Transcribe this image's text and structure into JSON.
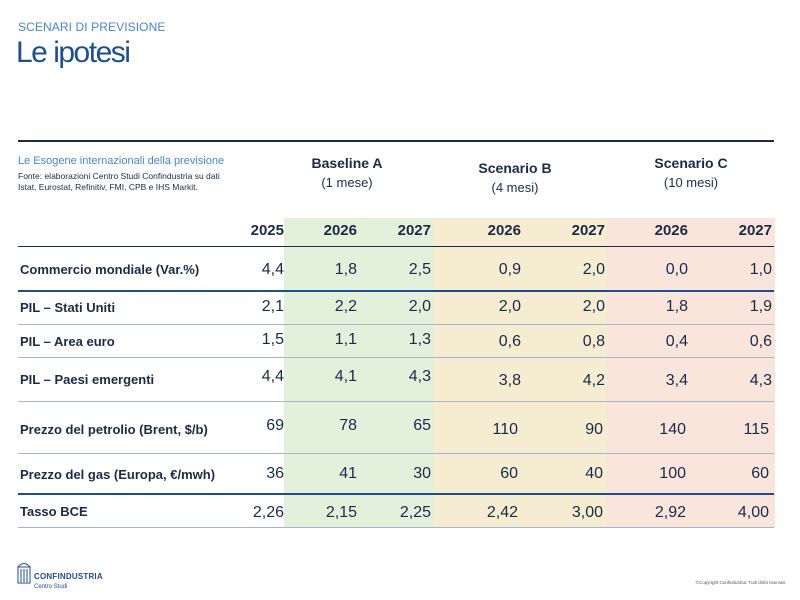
{
  "header": {
    "section": "SCENARI DI PREVISIONE",
    "title": "Le ipotesi"
  },
  "table": {
    "title": "Le Esogene internazionali della previsione",
    "source": "Fonte: elaborazioni Centro Studi Confindustria su dati Istat, Eurostat, Refinitiv, FMI, CPB e IHS Markit.",
    "scenarios": [
      {
        "name": "Baseline A",
        "sub": "(1 mese)"
      },
      {
        "name": "Scenario B",
        "sub": "(4 mesi)"
      },
      {
        "name": "Scenario C",
        "sub": "(10 mesi)"
      }
    ],
    "years": [
      "2025",
      "2026",
      "2027",
      "2026",
      "2027",
      "2026",
      "2027"
    ],
    "rows": [
      {
        "label": "Commercio mondiale (Var.%)",
        "values": [
          "4,4",
          "1,8",
          "2,5",
          "0,9",
          "2,0",
          "0,0",
          "1,0"
        ]
      },
      {
        "label": "PIL – Stati Uniti",
        "values": [
          "2,1",
          "2,2",
          "2,0",
          "2,0",
          "2,0",
          "1,8",
          "1,9"
        ]
      },
      {
        "label": "PIL – Area euro",
        "values": [
          "1,5",
          "1,1",
          "1,3",
          "0,6",
          "0,8",
          "0,4",
          "0,6"
        ]
      },
      {
        "label": "PIL – Paesi emergenti",
        "values": [
          "4,4",
          "4,1",
          "4,3",
          "3,8",
          "4,2",
          "3,4",
          "4,3"
        ]
      },
      {
        "label": "Prezzo del petrolio (Brent, $/b)",
        "values": [
          "69",
          "78",
          "65",
          "110",
          "90",
          "140",
          "115"
        ]
      },
      {
        "label": "Prezzo del gas (Europa, €/mwh)",
        "values": [
          "36",
          "41",
          "30",
          "60",
          "40",
          "100",
          "60"
        ]
      },
      {
        "label": "Tasso BCE",
        "values": [
          "2,26",
          "2,15",
          "2,25",
          "2,42",
          "3,00",
          "2,92",
          "4,00"
        ]
      }
    ]
  },
  "footer": {
    "logo_name": "CONFINDUSTRIA",
    "logo_sub": "Centro Studi",
    "copyright": "©Copyright Confindustria. Tutti diritti riservati."
  },
  "colors": {
    "accent": "#4a86c5",
    "title": "#1f4e8f",
    "baseline_band": "#e3f1dc",
    "scenario_b_band": "#f5ecd2",
    "scenario_c_band": "#f9e5dc"
  }
}
